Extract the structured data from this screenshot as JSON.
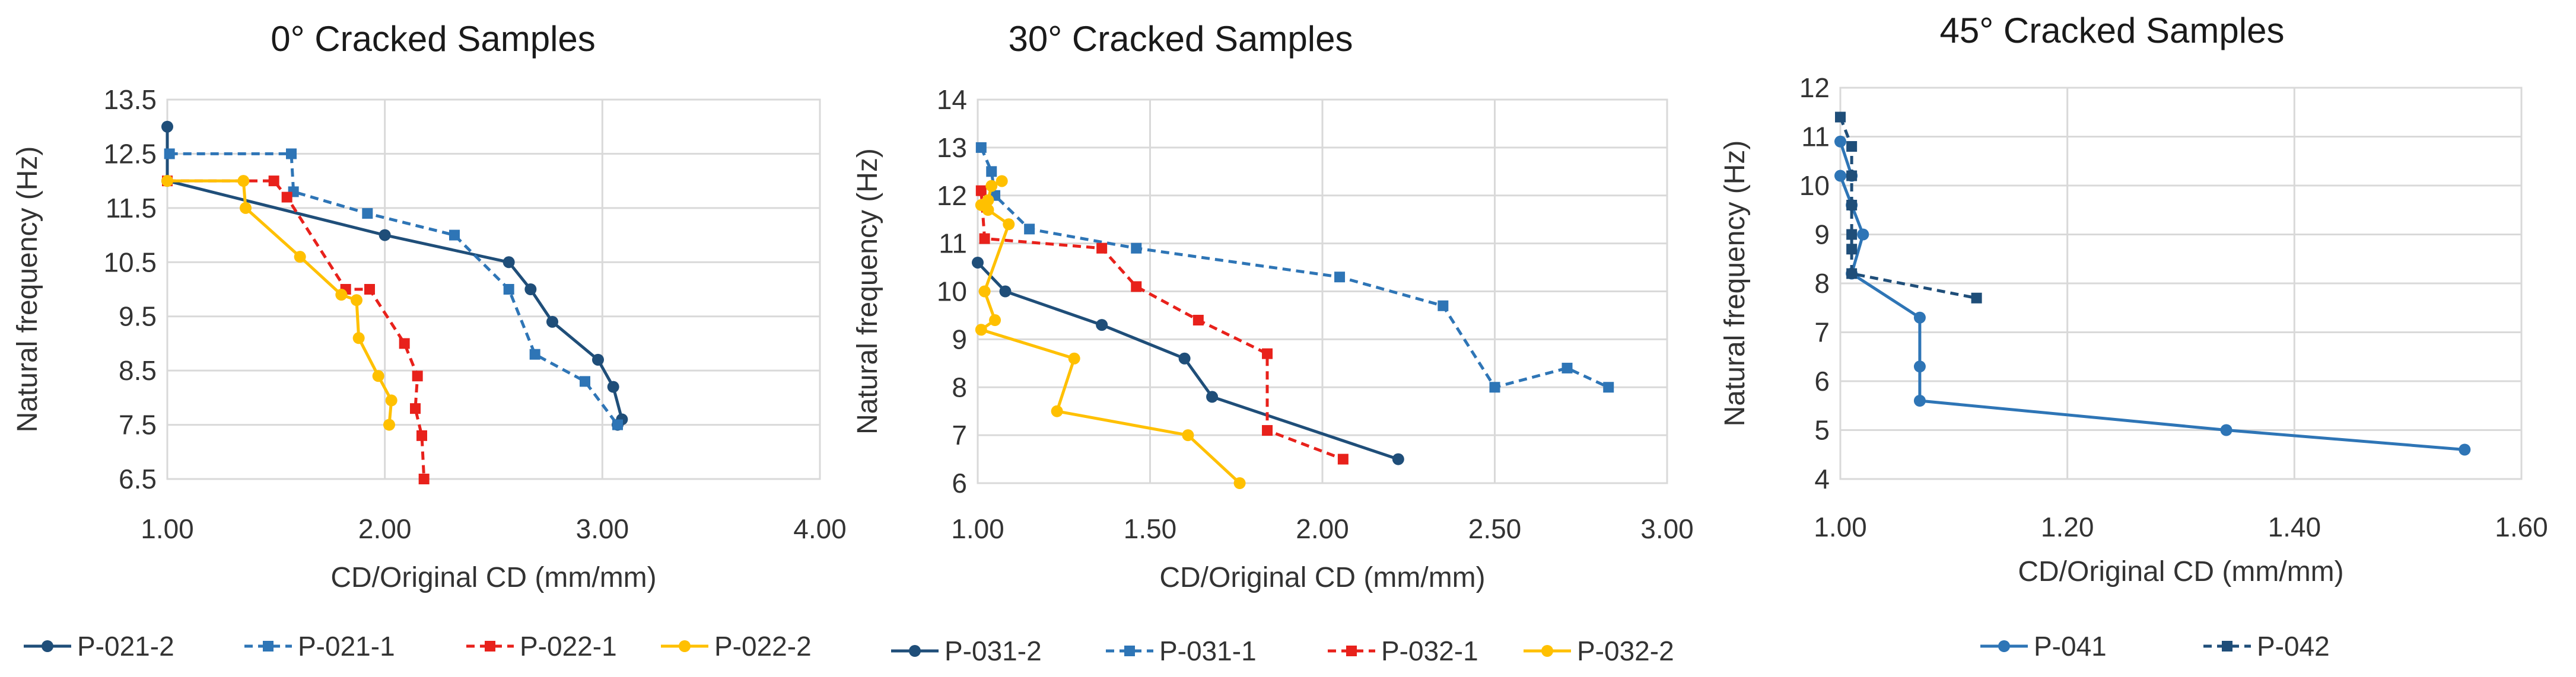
{
  "chart_data": [
    {
      "type": "line",
      "title": "0° Cracked Samples",
      "xlabel": "CD/Original CD (mm/mm)",
      "ylabel": "Natural frequency (Hz)",
      "xlim": [
        1.0,
        4.0
      ],
      "ylim": [
        6.5,
        13.5
      ],
      "xticks": [
        "1.00",
        "2.00",
        "3.00",
        "4.00"
      ],
      "yticks": [
        "6.5",
        "7.5",
        "8.5",
        "9.5",
        "10.5",
        "11.5",
        "12.5",
        "13.5"
      ],
      "series": [
        {
          "name": "P-021-2",
          "color": "#1f4e79",
          "dash": "solid",
          "marker": "circle",
          "x": [
            1.0,
            1.0,
            2.0,
            2.57,
            2.67,
            2.77,
            2.98,
            3.05,
            3.09,
            3.07
          ],
          "y": [
            13.0,
            12.0,
            11.0,
            10.5,
            10.0,
            9.4,
            8.7,
            8.2,
            7.6,
            7.5
          ]
        },
        {
          "name": "P-021-1",
          "color": "#2e75b6",
          "dash": "dashed",
          "marker": "square",
          "x": [
            1.01,
            1.57,
            1.58,
            1.92,
            2.32,
            2.57,
            2.69,
            2.92,
            3.07
          ],
          "y": [
            12.5,
            12.5,
            11.8,
            11.4,
            11.0,
            10.0,
            8.8,
            8.3,
            7.5
          ]
        },
        {
          "name": "P-022-1",
          "color": "#e8211b",
          "dash": "dashed",
          "marker": "square",
          "x": [
            1.0,
            1.49,
            1.55,
            1.82,
            1.93,
            2.09,
            2.15,
            2.14,
            2.17,
            2.18
          ],
          "y": [
            12.0,
            12.0,
            11.7,
            10.0,
            10.0,
            9.0,
            8.4,
            7.8,
            7.3,
            6.5
          ]
        },
        {
          "name": "P-022-2",
          "color": "#ffc000",
          "dash": "solid",
          "marker": "circle",
          "x": [
            1.0,
            1.35,
            1.36,
            1.61,
            1.8,
            1.87,
            1.88,
            1.97,
            2.03,
            2.02
          ],
          "y": [
            12.0,
            12.0,
            11.5,
            10.6,
            9.9,
            9.8,
            9.1,
            8.4,
            7.95,
            7.5
          ]
        }
      ]
    },
    {
      "type": "line",
      "title": "30° Cracked Samples",
      "xlabel": "CD/Original CD (mm/mm)",
      "ylabel": "Natural frequency (Hz)",
      "xlim": [
        1.0,
        3.0
      ],
      "ylim": [
        6,
        14
      ],
      "xticks": [
        "1.00",
        "1.50",
        "2.00",
        "2.50",
        "3.00"
      ],
      "yticks": [
        "6",
        "7",
        "8",
        "9",
        "10",
        "11",
        "12",
        "13",
        "14"
      ],
      "series": [
        {
          "name": "P-031-2",
          "color": "#1f4e79",
          "dash": "solid",
          "marker": "circle",
          "x": [
            1.0,
            1.08,
            1.36,
            1.6,
            1.68,
            2.22
          ],
          "y": [
            10.6,
            10.0,
            9.3,
            8.6,
            7.8,
            6.5
          ]
        },
        {
          "name": "P-031-1",
          "color": "#2e75b6",
          "dash": "dashed",
          "marker": "square",
          "x": [
            1.01,
            1.04,
            1.05,
            1.15,
            1.46,
            2.05,
            2.35,
            2.5,
            2.71,
            2.83
          ],
          "y": [
            13.0,
            12.5,
            12.0,
            11.3,
            10.9,
            10.3,
            9.7,
            8.0,
            8.4,
            8.0
          ]
        },
        {
          "name": "P-032-1",
          "color": "#e8211b",
          "dash": "dashed",
          "marker": "square",
          "x": [
            1.01,
            1.02,
            1.36,
            1.46,
            1.64,
            1.84,
            1.84,
            2.06
          ],
          "y": [
            12.1,
            11.1,
            10.9,
            10.1,
            9.4,
            8.7,
            7.1,
            6.5
          ]
        },
        {
          "name": "P-032-2",
          "color": "#ffc000",
          "dash": "solid",
          "marker": "circle",
          "x": [
            1.07,
            1.04,
            1.03,
            1.01,
            1.03,
            1.09,
            1.02,
            1.05,
            1.01,
            1.28,
            1.23,
            1.61,
            1.76
          ],
          "y": [
            12.3,
            12.2,
            11.9,
            11.8,
            11.7,
            11.4,
            10.0,
            9.4,
            9.2,
            8.6,
            7.5,
            7.0,
            6.0
          ]
        }
      ]
    },
    {
      "type": "line",
      "title": "45° Cracked Samples",
      "xlabel": "CD/Original CD (mm/mm)",
      "ylabel": "Natural frequency (Hz)",
      "xlim": [
        1.0,
        1.6
      ],
      "ylim": [
        4,
        12
      ],
      "xticks": [
        "1.00",
        "1.20",
        "1.40",
        "1.60"
      ],
      "yticks": [
        "4",
        "5",
        "6",
        "7",
        "8",
        "9",
        "10",
        "11",
        "12"
      ],
      "series": [
        {
          "name": "P-041",
          "color": "#2e75b6",
          "dash": "solid",
          "marker": "circle",
          "x": [
            1.0,
            1.01,
            1.0,
            1.01,
            1.02,
            1.01,
            1.07,
            1.07,
            1.07,
            1.34,
            1.55
          ],
          "y": [
            10.9,
            10.2,
            10.2,
            9.6,
            9.0,
            8.2,
            7.3,
            6.3,
            5.6,
            5.0,
            4.6
          ]
        },
        {
          "name": "P-042",
          "color": "#1f4e79",
          "dash": "dashed",
          "marker": "square",
          "x": [
            1.0,
            1.01,
            1.01,
            1.01,
            1.01,
            1.01,
            1.01,
            1.12
          ],
          "y": [
            11.4,
            10.8,
            10.2,
            9.6,
            9.0,
            8.7,
            8.2,
            7.7
          ]
        }
      ]
    }
  ]
}
